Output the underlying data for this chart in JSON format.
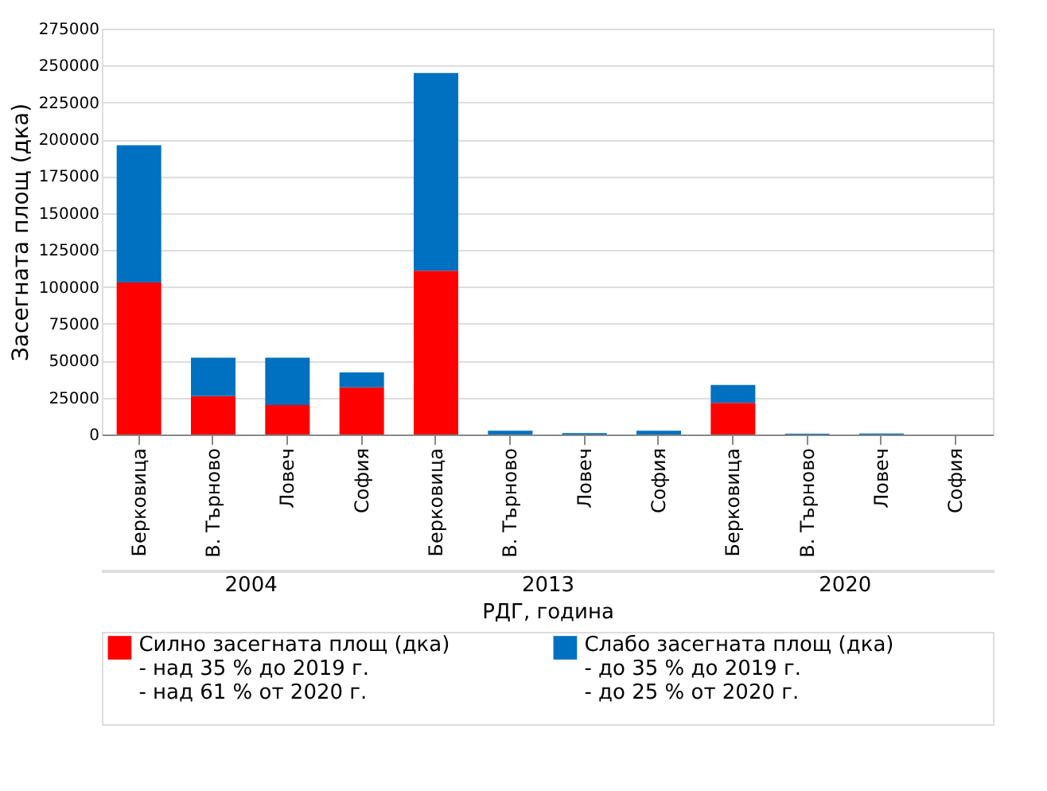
{
  "chart_data": {
    "type": "bar",
    "stacked": true,
    "ylabel": "Засегната площ (дка)",
    "xlabel": "РДГ, година",
    "categories": [
      "Берковица",
      "В. Търново",
      "Ловеч",
      "София",
      "Берковица",
      "В. Търново",
      "Ловеч",
      "София",
      "Берковица",
      "В. Търново",
      "Ловеч",
      "София"
    ],
    "annotations": [
      "2004",
      "2013",
      "2020"
    ],
    "series": [
      {
        "name": "Силно засегната площ (дка)\n- над 35 % до 2019 г.\n- над 61 % от 2020 г.",
        "color": "#ff0000",
        "values": [
          103000,
          26000,
          20000,
          32000,
          111000,
          0,
          0,
          0,
          21500,
          0,
          0,
          0
        ]
      },
      {
        "name": "Слабо засегната площ (дка)\n- до 35 % до 2019 г.\n- до 25 % от 2020 г.",
        "color": "#0070c0",
        "values": [
          93000,
          26000,
          32000,
          10000,
          134000,
          2500,
          1000,
          2500,
          12000,
          500,
          700,
          0
        ]
      }
    ],
    "ylim": [
      0,
      275000
    ],
    "yticks": [
      0,
      25000,
      50000,
      75000,
      100000,
      125000,
      150000,
      175000,
      200000,
      225000,
      250000,
      275000
    ],
    "grid": "y",
    "legend": "bottom"
  }
}
